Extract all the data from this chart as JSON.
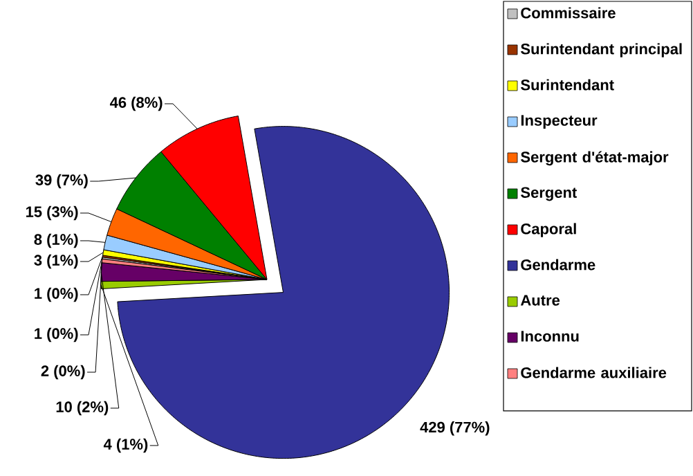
{
  "chart_data": {
    "type": "pie",
    "categories": [
      "Commissaire",
      "Surintendant principal",
      "Surintendant",
      "Inspecteur",
      "Sergent d'état-major",
      "Sergent",
      "Caporal",
      "Gendarme",
      "Autre",
      "Inconnu",
      "Gendarme auxiliaire"
    ],
    "values": [
      1,
      1,
      3,
      8,
      15,
      39,
      46,
      429,
      4,
      10,
      2
    ],
    "value_labels": [
      "1 (0%)",
      "1 (0%)",
      "3 (1%)",
      "8 (1%)",
      "15 (3%)",
      "39 (7%)",
      "46 (8%)",
      "429 (77%)",
      "4 (1%)",
      "10 (2%)",
      "2 (0%)"
    ],
    "colors": [
      "#c0c0c0",
      "#993300",
      "#ffff00",
      "#99ccff",
      "#ff6600",
      "#008000",
      "#ff0000",
      "#333399",
      "#99cc00",
      "#660066",
      "#ff8080"
    ],
    "legend": "right"
  }
}
